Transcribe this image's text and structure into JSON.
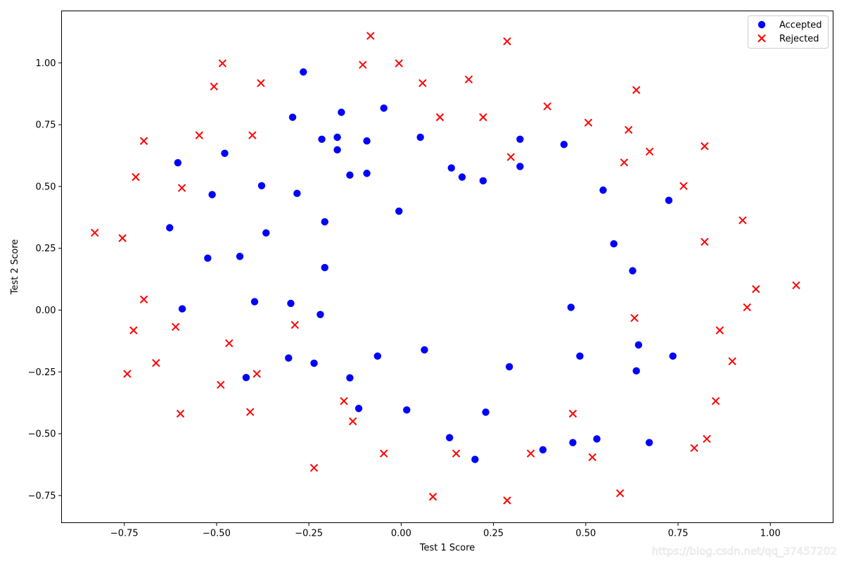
{
  "chart_data": {
    "type": "scatter",
    "xlabel": "Test 1 Score",
    "ylabel": "Test 2 Score",
    "xlim": [
      -0.92,
      1.17
    ],
    "ylim": [
      -0.86,
      1.21
    ],
    "x_ticks": [
      -0.75,
      -0.5,
      -0.25,
      0.0,
      0.25,
      0.5,
      0.75,
      1.0
    ],
    "x_tick_labels": [
      "−0.75",
      "−0.50",
      "−0.25",
      "0.00",
      "0.25",
      "0.50",
      "0.75",
      "1.00"
    ],
    "y_ticks": [
      -0.75,
      -0.5,
      -0.25,
      0.0,
      0.25,
      0.5,
      0.75,
      1.0
    ],
    "y_tick_labels": [
      "−0.75",
      "−0.50",
      "−0.25",
      "0.00",
      "0.25",
      "0.50",
      "0.75",
      "1.00"
    ],
    "grid": false,
    "legend": {
      "placement": "top-right"
    },
    "series": [
      {
        "name": "Accepted",
        "marker": "circle",
        "color": "#0000ff",
        "points": [
          [
            -0.265,
            0.963
          ],
          [
            -0.294,
            0.78
          ],
          [
            -0.162,
            0.8
          ],
          [
            -0.047,
            0.817
          ],
          [
            -0.215,
            0.691
          ],
          [
            -0.173,
            0.699
          ],
          [
            -0.173,
            0.648
          ],
          [
            -0.093,
            0.684
          ],
          [
            -0.139,
            0.546
          ],
          [
            -0.093,
            0.553
          ],
          [
            -0.605,
            0.596
          ],
          [
            -0.478,
            0.634
          ],
          [
            -0.512,
            0.467
          ],
          [
            -0.378,
            0.503
          ],
          [
            -0.282,
            0.472
          ],
          [
            -0.627,
            0.333
          ],
          [
            -0.524,
            0.21
          ],
          [
            -0.437,
            0.217
          ],
          [
            -0.366,
            0.312
          ],
          [
            -0.207,
            0.357
          ],
          [
            -0.207,
            0.172
          ],
          [
            -0.397,
            0.034
          ],
          [
            -0.299,
            0.027
          ],
          [
            -0.219,
            -0.018
          ],
          [
            -0.593,
            0.005
          ],
          [
            -0.305,
            -0.194
          ],
          [
            -0.236,
            -0.215
          ],
          [
            -0.42,
            -0.273
          ],
          [
            -0.139,
            -0.274
          ],
          [
            -0.064,
            -0.186
          ],
          [
            -0.115,
            -0.398
          ],
          [
            0.015,
            -0.404
          ],
          [
            0.063,
            -0.161
          ],
          [
            0.131,
            -0.516
          ],
          [
            0.2,
            -0.604
          ],
          [
            0.229,
            -0.413
          ],
          [
            0.293,
            -0.229
          ],
          [
            0.384,
            -0.565
          ],
          [
            0.465,
            -0.536
          ],
          [
            0.53,
            -0.521
          ],
          [
            0.484,
            -0.186
          ],
          [
            0.46,
            0.011
          ],
          [
            0.643,
            -0.141
          ],
          [
            0.637,
            -0.246
          ],
          [
            0.736,
            -0.186
          ],
          [
            0.672,
            -0.536
          ],
          [
            0.627,
            0.159
          ],
          [
            0.576,
            0.268
          ],
          [
            0.547,
            0.485
          ],
          [
            0.725,
            0.444
          ],
          [
            0.441,
            0.67
          ],
          [
            0.322,
            0.581
          ],
          [
            0.322,
            0.691
          ],
          [
            0.222,
            0.523
          ],
          [
            0.165,
            0.538
          ],
          [
            0.136,
            0.575
          ],
          [
            0.052,
            0.699
          ],
          [
            -0.006,
            0.4
          ]
        ]
      },
      {
        "name": "Rejected",
        "marker": "x",
        "color": "#ff0000",
        "points": [
          [
            -0.083,
            1.109
          ],
          [
            -0.484,
            0.998
          ],
          [
            -0.006,
            0.998
          ],
          [
            0.287,
            1.087
          ],
          [
            -0.104,
            0.992
          ],
          [
            -0.507,
            0.904
          ],
          [
            -0.38,
            0.918
          ],
          [
            0.058,
            0.918
          ],
          [
            0.183,
            0.933
          ],
          [
            -0.697,
            0.684
          ],
          [
            -0.547,
            0.707
          ],
          [
            -0.403,
            0.707
          ],
          [
            -0.719,
            0.538
          ],
          [
            -0.594,
            0.494
          ],
          [
            0.105,
            0.78
          ],
          [
            0.222,
            0.78
          ],
          [
            0.297,
            0.619
          ],
          [
            0.396,
            0.824
          ],
          [
            0.507,
            0.758
          ],
          [
            0.616,
            0.729
          ],
          [
            0.637,
            0.89
          ],
          [
            0.673,
            0.641
          ],
          [
            0.604,
            0.597
          ],
          [
            0.822,
            0.663
          ],
          [
            0.765,
            0.502
          ],
          [
            0.822,
            0.276
          ],
          [
            0.925,
            0.363
          ],
          [
            -0.83,
            0.313
          ],
          [
            -0.755,
            0.291
          ],
          [
            -0.697,
            0.043
          ],
          [
            -0.725,
            -0.082
          ],
          [
            -0.611,
            -0.068
          ],
          [
            -0.742,
            -0.258
          ],
          [
            -0.664,
            -0.214
          ],
          [
            -0.466,
            -0.134
          ],
          [
            -0.489,
            -0.302
          ],
          [
            -0.391,
            -0.258
          ],
          [
            -0.288,
            -0.06
          ],
          [
            -0.409,
            -0.412
          ],
          [
            -0.598,
            -0.419
          ],
          [
            -0.155,
            -0.368
          ],
          [
            -0.131,
            -0.45
          ],
          [
            -0.236,
            -0.638
          ],
          [
            -0.047,
            -0.58
          ],
          [
            0.086,
            -0.755
          ],
          [
            0.149,
            -0.58
          ],
          [
            0.287,
            -0.77
          ],
          [
            0.351,
            -0.58
          ],
          [
            0.465,
            -0.419
          ],
          [
            0.518,
            -0.595
          ],
          [
            0.593,
            -0.741
          ],
          [
            0.632,
            -0.032
          ],
          [
            0.863,
            -0.082
          ],
          [
            0.897,
            -0.207
          ],
          [
            0.852,
            -0.368
          ],
          [
            0.828,
            -0.521
          ],
          [
            0.794,
            -0.558
          ],
          [
            0.937,
            0.011
          ],
          [
            0.961,
            0.085
          ],
          [
            1.07,
            0.1
          ]
        ]
      }
    ]
  },
  "watermark": "https://blog.csdn.net/qq_37457202"
}
